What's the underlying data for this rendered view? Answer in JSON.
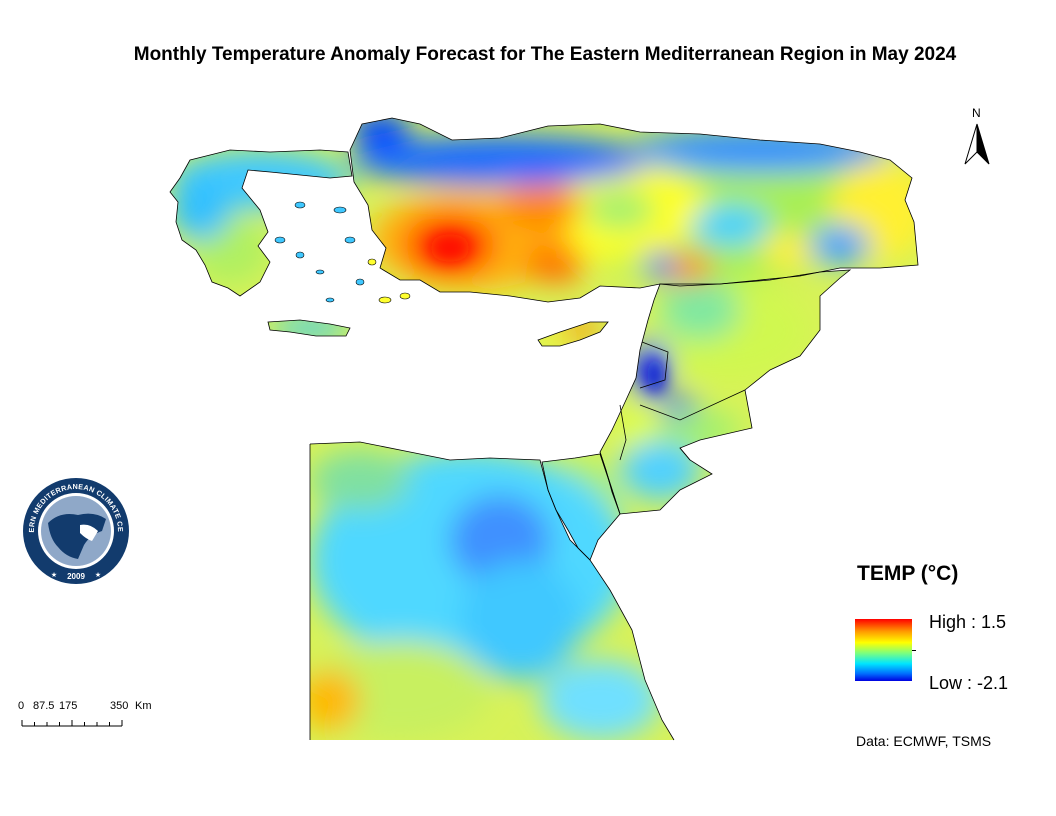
{
  "title": "Monthly Temperature Anomaly Forecast for The Eastern Mediterranean Region in May 2024",
  "north_arrow": {
    "label": "N"
  },
  "legend": {
    "title": "TEMP (°C)",
    "high_label": "High : 1.5",
    "low_label": "Low : -2.1",
    "colors": [
      "#ff0000",
      "#ff9a00",
      "#ffff00",
      "#7dff7d",
      "#00e5ff",
      "#0070ff",
      "#0000e0"
    ]
  },
  "scale_bar": {
    "labels": [
      "0",
      "87.5",
      "175",
      "350",
      "Km"
    ]
  },
  "source": "Data: ECMWF, TSMS",
  "logo": {
    "icon": "climate-centre-logo-icon",
    "text_top": "EASTERN MEDITERRANEAN CLIMATE CENTRE",
    "year": "2009"
  }
}
